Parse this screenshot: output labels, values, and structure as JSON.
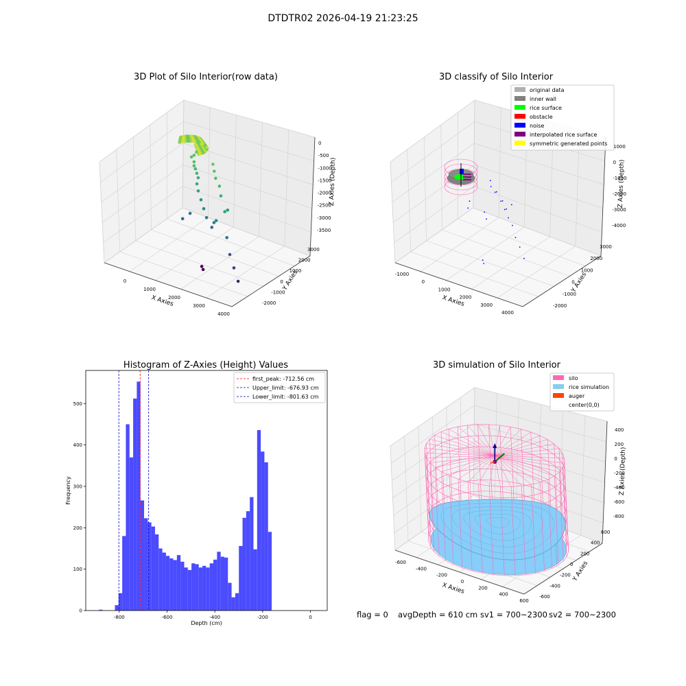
{
  "suptitle": "DTDTR02 2026-04-19 21:23:25",
  "footer": {
    "flag": "flag = 0",
    "avg_depth": "avgDepth = 610 cm",
    "sv1": "sv1 = 700~2300",
    "sv2": "sv2 = 700~2300"
  },
  "colors": {
    "hist_bar": "#4b4bff",
    "first_peak": "#ff0000",
    "limits": "#0000cc",
    "silo": "#ff69b4",
    "rice": "#87cefa",
    "auger": "#ff4500"
  },
  "chart_data": [
    {
      "type": "scatter",
      "title": "3D Plot of Silo Interior(row data)",
      "xlabel": "X Axies",
      "ylabel": "Y Axies",
      "zlabel": "Z Axies (Depth)",
      "x_ticks": [
        "0",
        "1000",
        "2000",
        "3000",
        "4000"
      ],
      "y_ticks": [
        "-2000",
        "-1000",
        "0",
        "1000",
        "2000",
        "3000"
      ],
      "z_ticks": [
        "0",
        "-500",
        "-1000",
        "-1500",
        "-2000",
        "-2500",
        "-3000",
        "-3500"
      ],
      "xlim": [
        -700,
        4300
      ],
      "ylim": [
        -2500,
        3500
      ],
      "zlim": [
        -3700,
        0
      ],
      "colormap": "viridis",
      "points": [
        {
          "x": 400,
          "y": 2700,
          "z": -900
        },
        {
          "x": 350,
          "y": 2600,
          "z": -1000
        },
        {
          "x": 300,
          "y": 2500,
          "z": -1050
        },
        {
          "x": 500,
          "y": 2300,
          "z": -1100
        },
        {
          "x": 600,
          "y": 2100,
          "z": -1150
        },
        {
          "x": 700,
          "y": 2000,
          "z": -1200
        },
        {
          "x": 800,
          "y": 1900,
          "z": -1300
        },
        {
          "x": 900,
          "y": 1800,
          "z": -1400
        },
        {
          "x": 1000,
          "y": 1500,
          "z": -1500
        },
        {
          "x": 1200,
          "y": 1200,
          "z": -1600
        },
        {
          "x": 1400,
          "y": 1000,
          "z": -1800
        },
        {
          "x": 1600,
          "y": 800,
          "z": -2000
        },
        {
          "x": 1800,
          "y": 600,
          "z": -2200
        },
        {
          "x": 2100,
          "y": 400,
          "z": -2400
        },
        {
          "x": 2300,
          "y": 200,
          "z": -2100
        },
        {
          "x": 2500,
          "y": 0,
          "z": -1900
        },
        {
          "x": 2700,
          "y": 300,
          "z": -1600
        },
        {
          "x": 2000,
          "y": 1300,
          "z": -1200
        },
        {
          "x": 1700,
          "y": 1600,
          "z": -1100
        },
        {
          "x": 1500,
          "y": 1900,
          "z": -1000
        },
        {
          "x": 1300,
          "y": 2200,
          "z": -900
        },
        {
          "x": 2200,
          "y": 1000,
          "z": -1400
        },
        {
          "x": 2600,
          "y": 700,
          "z": -1700
        },
        {
          "x": 3000,
          "y": -200,
          "z": -2300
        },
        {
          "x": 3300,
          "y": -600,
          "z": -2700
        },
        {
          "x": 3600,
          "y": -900,
          "z": -3000
        },
        {
          "x": 3900,
          "y": -1200,
          "z": -3300
        },
        {
          "x": 1100,
          "y": 700,
          "z": -2300
        },
        {
          "x": 900,
          "y": 500,
          "z": -2500
        },
        {
          "x": 2000,
          "y": -300,
          "z": -3650
        },
        {
          "x": 2100,
          "y": -400,
          "z": -3700
        }
      ]
    },
    {
      "type": "scatter",
      "title": "3D classify of Silo Interior",
      "xlabel": "X Axies",
      "ylabel": "Y Axies",
      "zlabel": "Z Axies (Depth)",
      "x_ticks": [
        "-1000",
        "0",
        "1000",
        "2000",
        "3000",
        "4000"
      ],
      "y_ticks": [
        "-2000",
        "-1000",
        "0",
        "1000",
        "2000",
        "3000"
      ],
      "z_ticks": [
        "1000",
        "0",
        "-1000",
        "-2000",
        "-3000",
        "-4000"
      ],
      "xlim": [
        -1300,
        4500
      ],
      "ylim": [
        -2500,
        3500
      ],
      "zlim": [
        -4500,
        1000
      ],
      "legend": [
        {
          "label": "original data",
          "color": "#b0b0b0"
        },
        {
          "label": "inner wall",
          "color": "#808080"
        },
        {
          "label": "rice surface",
          "color": "#00ff00"
        },
        {
          "label": "obstacle",
          "color": "#ff0000"
        },
        {
          "label": "noise",
          "color": "#0000ff"
        },
        {
          "label": "interpolated rice surface",
          "color": "#800080"
        },
        {
          "label": "symmetric generated points",
          "color": "#ffff00"
        }
      ],
      "legend_loc": "upper right",
      "noise_points": [
        {
          "x": 800,
          "y": 1500,
          "z": -1000
        },
        {
          "x": 1000,
          "y": 1200,
          "z": -1100
        },
        {
          "x": 1300,
          "y": 1000,
          "z": -1200
        },
        {
          "x": 1500,
          "y": 800,
          "z": -1000
        },
        {
          "x": 1800,
          "y": 600,
          "z": -1300
        },
        {
          "x": 2000,
          "y": 400,
          "z": -1100
        },
        {
          "x": 2200,
          "y": 200,
          "z": -1400
        },
        {
          "x": 2400,
          "y": 0,
          "z": -1200
        },
        {
          "x": 2600,
          "y": -200,
          "z": -1500
        },
        {
          "x": 2900,
          "y": -400,
          "z": -1700
        },
        {
          "x": 3200,
          "y": -700,
          "z": -2100
        },
        {
          "x": 3500,
          "y": -900,
          "z": -2400
        },
        {
          "x": 3800,
          "y": -1100,
          "z": -2800
        },
        {
          "x": 1200,
          "y": 300,
          "z": -2000
        },
        {
          "x": 1400,
          "y": 100,
          "z": -2200
        },
        {
          "x": 600,
          "y": 200,
          "z": -1600
        },
        {
          "x": 700,
          "y": -100,
          "z": -1800
        },
        {
          "x": 1700,
          "y": -800,
          "z": -3900
        },
        {
          "x": 1800,
          "y": -900,
          "z": -4000
        },
        {
          "x": 2100,
          "y": 900,
          "z": -1500
        }
      ]
    },
    {
      "type": "bar",
      "title": "Histogram of Z-Axies (Height) Values",
      "xlabel": "Depth (cm)",
      "ylabel": "Frequency",
      "xlim": [
        -940,
        70
      ],
      "ylim": [
        0,
        580
      ],
      "x_ticks": [
        -800,
        -600,
        -400,
        -200,
        0
      ],
      "y_ticks": [
        0,
        100,
        200,
        300,
        400,
        500
      ],
      "bin_start": -818,
      "bin_width": 15.25,
      "values": [
        13,
        42,
        180,
        450,
        370,
        512,
        553,
        266,
        223,
        213,
        203,
        184,
        150,
        140,
        132,
        126,
        122,
        134,
        118,
        104,
        98,
        114,
        112,
        104,
        108,
        104,
        114,
        123,
        142,
        130,
        128,
        67,
        32,
        42,
        156,
        224,
        240,
        274,
        148,
        436,
        384,
        358,
        190
      ],
      "extra_bars": [
        {
          "x": -885,
          "value": 2
        }
      ],
      "vlines": [
        {
          "x": -712.56,
          "label": "first_peak: -712.56 cm",
          "color": "#ff0000"
        },
        {
          "x": -676.93,
          "label": "Upper_limit: -676.93 cm",
          "color": "#0000cc"
        },
        {
          "x": -801.63,
          "label": "Lower_limit: -801.63 cm",
          "color": "#0000cc"
        }
      ],
      "legend_loc": "upper right"
    },
    {
      "type": "surface",
      "title": "3D simulation of Silo Interior",
      "xlabel": "X Axies",
      "ylabel": "Y Axies",
      "zlabel": "Z Axies (Depth)",
      "x_ticks": [
        "-600",
        "-400",
        "-200",
        "0",
        "200",
        "400",
        "600"
      ],
      "y_ticks": [
        "-600",
        "-400",
        "-200",
        "0",
        "200",
        "400",
        "600"
      ],
      "z_ticks": [
        "400",
        "200",
        "0",
        "-200",
        "-400",
        "-600",
        "-800"
      ],
      "xlim": [
        -700,
        700
      ],
      "ylim": [
        -700,
        700
      ],
      "zlim": [
        -900,
        450
      ],
      "silo_radius": 650,
      "silo_z": [
        -870,
        280
      ],
      "rice_level": -610,
      "legend": [
        {
          "label": "silo",
          "color": "#ff69b4"
        },
        {
          "label": "rice simulation",
          "color": "#87ceeb"
        },
        {
          "label": "auger",
          "color": "#ff4500"
        },
        {
          "label": "center(0,0)",
          "color": "#ffffff"
        }
      ],
      "legend_loc": "upper right"
    }
  ]
}
